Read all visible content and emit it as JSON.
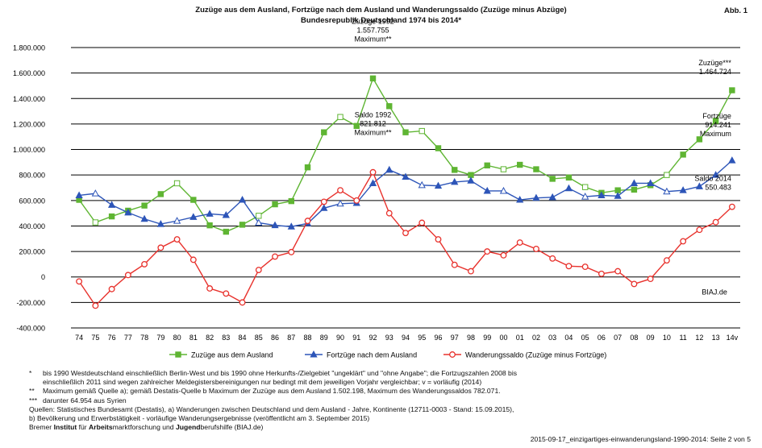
{
  "header": {
    "title_line1": "Zuzüge aus dem Ausland, Fortzüge nach dem Ausland und Wanderungssaldo (Zuzüge minus Abzüge)",
    "title_line2": "Bundesrepublik Deutschland 1974 bis 2014*",
    "figure_ref": "Abb. 1"
  },
  "chart_data": {
    "type": "line",
    "title": "Zuzüge aus dem Ausland, Fortzüge nach dem Ausland und Wanderungssaldo (Zuzüge minus Abzüge) Bundesrepublik Deutschland 1974 bis 2014*",
    "categories": [
      "74",
      "75",
      "76",
      "77",
      "78",
      "79",
      "80",
      "81",
      "82",
      "83",
      "84",
      "85",
      "86",
      "87",
      "88",
      "89",
      "90",
      "91",
      "92",
      "93",
      "94",
      "95",
      "96",
      "97",
      "98",
      "99",
      "00",
      "01",
      "02",
      "03",
      "04",
      "05",
      "06",
      "07",
      "08",
      "09",
      "10",
      "11",
      "12",
      "13",
      "14v"
    ],
    "ylim": [
      -400000,
      1800000
    ],
    "yticks": [
      -400000,
      -200000,
      0,
      200000,
      400000,
      600000,
      800000,
      1000000,
      1200000,
      1400000,
      1600000,
      1800000
    ],
    "ytick_labels": [
      "-400.000",
      "-200.000",
      "0",
      "200.000",
      "400.000",
      "600.000",
      "800.000",
      "1.000.000",
      "1.200.000",
      "1.400.000",
      "1.600.000",
      "1.800.000"
    ],
    "grid": true,
    "legend_position": "bottom",
    "series": [
      {
        "name": "Zuzüge aus dem Ausland",
        "color": "#5fb533",
        "marker": "square",
        "open_markers": [
          "75",
          "80",
          "85",
          "90",
          "95",
          "00",
          "05",
          "10"
        ],
        "values": [
          605000,
          428000,
          475000,
          520000,
          560000,
          650000,
          735000,
          605000,
          405000,
          355000,
          410000,
          480000,
          570000,
          595000,
          860000,
          1135000,
          1255000,
          1185000,
          1557755,
          1340000,
          1135000,
          1145000,
          1010000,
          840000,
          800000,
          875000,
          845000,
          880000,
          845000,
          770000,
          780000,
          705000,
          660000,
          680000,
          685000,
          720000,
          800000,
          960000,
          1080000,
          1225000,
          1464724
        ]
      },
      {
        "name": "Fortzüge nach dem Ausland",
        "color": "#2d55b8",
        "marker": "triangle",
        "open_markers": [
          "75",
          "80",
          "85",
          "90",
          "95",
          "00",
          "05",
          "10"
        ],
        "values": [
          640000,
          655000,
          565000,
          505000,
          455000,
          415000,
          440000,
          470000,
          495000,
          485000,
          605000,
          425000,
          405000,
          395000,
          420000,
          540000,
          575000,
          580000,
          735000,
          840000,
          785000,
          720000,
          715000,
          745000,
          755000,
          675000,
          675000,
          605000,
          620000,
          625000,
          695000,
          630000,
          640000,
          635000,
          735000,
          735000,
          670000,
          680000,
          710000,
          800000,
          914241
        ]
      },
      {
        "name": "Wanderungssaldo (Zuzüge minus Fortzüge)",
        "color": "#e8322d",
        "marker": "circle",
        "open_markers": [],
        "values": [
          -35000,
          -225000,
          -95000,
          15000,
          100000,
          230000,
          295000,
          135000,
          -90000,
          -130000,
          -200000,
          55000,
          160000,
          195000,
          440000,
          590000,
          680000,
          600000,
          821812,
          500000,
          345000,
          425000,
          295000,
          95000,
          45000,
          200000,
          170000,
          270000,
          220000,
          145000,
          85000,
          80000,
          25000,
          45000,
          -55000,
          -15000,
          130000,
          280000,
          370000,
          430000,
          550483
        ]
      }
    ],
    "annotations": [
      {
        "lines": [
          "Zuzüge 1992",
          "1.557.755",
          "Maximum**"
        ],
        "series": 0,
        "x": "92"
      },
      {
        "lines": [
          "Saldo 1992",
          "821.812",
          "Maximum**"
        ],
        "series": 2,
        "x": "92"
      },
      {
        "lines": [
          "Zuzüge***",
          "1.464.724"
        ],
        "series": 0,
        "x": "14v"
      },
      {
        "lines": [
          "Fortzüge",
          "914.241",
          "Maximum"
        ],
        "series": 1,
        "x": "14v"
      },
      {
        "lines": [
          "Saldo 2014",
          "550.483"
        ],
        "series": 2,
        "x": "14v"
      },
      {
        "lines": [
          "BIAJ.de"
        ],
        "series": null,
        "x": "14v"
      }
    ]
  },
  "footnotes": [
    {
      "mark": "*",
      "text": "bis 1990 Westdeutschland einschließlich Berlin-West und bis 1990 ohne Herkunfts-/Zielgebiet \"ungeklärt\" und \"ohne Angabe\"; die Fortzugszahlen 2008 bis"
    },
    {
      "mark": "",
      "text": "einschließlich 2011 sind wegen zahlreicher Meldegistersbereinigungen nur bedingt mit dem jeweiligen Vorjahr vergleichbar; v = vorläufig (2014)"
    },
    {
      "mark": "**",
      "text": "Maximum gemäß Quelle a); gemäß Destatis-Quelle b Maximum der Zuzüge aus dem Ausland 1.502.198, Maximum des Wanderungssaldos 782.071."
    },
    {
      "mark": "***",
      "text": "darunter 64.954 aus Syrien"
    }
  ],
  "sources": [
    "Quellen: Statistisches Bundesamt (Destatis), a) Wanderungen zwischen Deutschland und dem Ausland - Jahre, Kontinente (12711-0003 - Stand: 15.09.2015),",
    "b) Bevölkerung und Erwerbstätigkeit - vorläufige Wanderungsergebnisse (veröffentlicht am 3. September 2015)"
  ],
  "institute": {
    "parts": [
      {
        "t": "Bremer ",
        "b": false
      },
      {
        "t": "Institut",
        "b": true
      },
      {
        "t": " für ",
        "b": false
      },
      {
        "t": "Arbeits",
        "b": true
      },
      {
        "t": "marktforschung und ",
        "b": false
      },
      {
        "t": "Jugend",
        "b": true
      },
      {
        "t": "berufshilfe (BIAJ.de)",
        "b": false
      }
    ]
  },
  "page_ref": "2015-09-17_einzigartiges-einwanderungsland-1990-2014: Seite 2 von 5"
}
